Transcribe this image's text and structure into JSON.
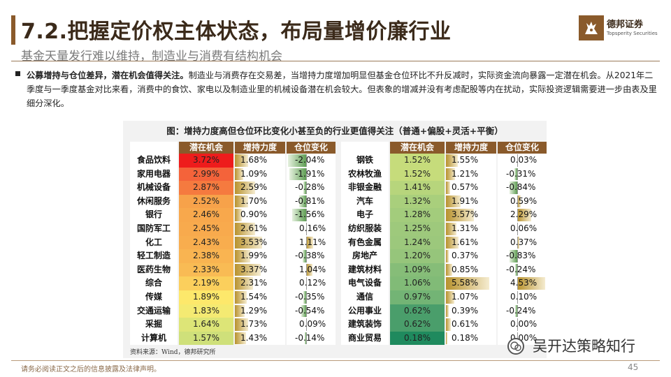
{
  "header": {
    "title": "7.2.把握定价权主体状态，布局量增价廉行业",
    "subtitle": "基金天量发行难以维持，制造业与消费有结构机会",
    "brand_colors": {
      "primary": "#8a5a2b",
      "title_text": "#3b2a1a"
    }
  },
  "logo": {
    "name": "德邦证券",
    "name_en": "Topsperity Securities",
    "icon": "deer-logo-icon"
  },
  "bullet": {
    "lead": "公募增持与仓位差异，潜在机会值得关注。",
    "body": "制造业与消费存在交易差，当增持力度增加明显但基金仓位环比不升反减时，实际资金流向暴露一定潜在机会。从2021年二季度与一季度基金对比来看，消费中的食饮、家电以及制造业里的机械设备潜在机会较大。但表象的增减并没有考虑配股等内在扰动，实际投资逻辑需要进一步由表及里细分深化。"
  },
  "panel": {
    "title": "图：增持力度高但仓位环比变化小甚至负的行业更值得关注（普通+偏股+灵活+平衡）",
    "source": "资料来源：Wind，德邦研究所"
  },
  "chart_data": {
    "type": "table",
    "columns": [
      "潜在机会",
      "增持力度",
      "仓位变化"
    ],
    "left": [
      {
        "industry": "食品饮料",
        "opportunity": "3.72%",
        "increase": "1.68%",
        "position": "-2.04%",
        "opp_color": "#ee1c1c",
        "inc": 1.68,
        "pos": -2.04
      },
      {
        "industry": "家用电器",
        "opportunity": "2.99%",
        "increase": "1.09%",
        "position": "-1.91%",
        "opp_color": "#f4633a",
        "inc": 1.09,
        "pos": -1.91
      },
      {
        "industry": "机械设备",
        "opportunity": "2.87%",
        "increase": "2.59%",
        "position": "-0.28%",
        "opp_color": "#f57a3f",
        "inc": 2.59,
        "pos": -0.28
      },
      {
        "industry": "休闲服务",
        "opportunity": "2.52%",
        "increase": "1.70%",
        "position": "-0.81%",
        "opp_color": "#f7a24a",
        "inc": 1.7,
        "pos": -0.81
      },
      {
        "industry": "银行",
        "opportunity": "2.46%",
        "increase": "0.90%",
        "position": "-1.56%",
        "opp_color": "#f8a84c",
        "inc": 0.9,
        "pos": -1.56
      },
      {
        "industry": "国防军工",
        "opportunity": "2.45%",
        "increase": "2.61%",
        "position": "0.16%",
        "opp_color": "#f8aa4d",
        "inc": 2.61,
        "pos": 0.16
      },
      {
        "industry": "化工",
        "opportunity": "2.43%",
        "increase": "3.53%",
        "position": "1.11%",
        "opp_color": "#f8ad4e",
        "inc": 3.53,
        "pos": 1.11
      },
      {
        "industry": "轻工制造",
        "opportunity": "2.38%",
        "increase": "1.99%",
        "position": "-0.38%",
        "opp_color": "#f9b451",
        "inc": 1.99,
        "pos": -0.38
      },
      {
        "industry": "医药生物",
        "opportunity": "2.33%",
        "increase": "3.37%",
        "position": "1.04%",
        "opp_color": "#f9bb54",
        "inc": 3.37,
        "pos": 1.04
      },
      {
        "industry": "综合",
        "opportunity": "2.19%",
        "increase": "2.31%",
        "position": "0.12%",
        "opp_color": "#fbcf5c",
        "inc": 2.31,
        "pos": 0.12
      },
      {
        "industry": "传媒",
        "opportunity": "1.89%",
        "increase": "1.54%",
        "position": "-0.35%",
        "opp_color": "#fde86b",
        "inc": 1.54,
        "pos": -0.35
      },
      {
        "industry": "交通运输",
        "opportunity": "1.83%",
        "increase": "1.29%",
        "position": "-0.54%",
        "opp_color": "#f4ea72",
        "inc": 1.29,
        "pos": -0.54
      },
      {
        "industry": "采掘",
        "opportunity": "1.64%",
        "increase": "1.73%",
        "position": "0.09%",
        "opp_color": "#dde577",
        "inc": 1.73,
        "pos": 0.09
      },
      {
        "industry": "计算机",
        "opportunity": "1.57%",
        "increase": "1.43%",
        "position": "-0.14%",
        "opp_color": "#cfe07a",
        "inc": 1.43,
        "pos": -0.14
      }
    ],
    "right": [
      {
        "industry": "钢铁",
        "opportunity": "1.52%",
        "increase": "1.55%",
        "position": "0.03%",
        "opp_color": "#c6dc7b",
        "inc": 1.55,
        "pos": 0.03
      },
      {
        "industry": "农林牧渔",
        "opportunity": "1.52%",
        "increase": "1.21%",
        "position": "-0.31%",
        "opp_color": "#c6dc7b",
        "inc": 1.21,
        "pos": -0.31
      },
      {
        "industry": "非银金融",
        "opportunity": "1.41%",
        "increase": "0.57%",
        "position": "-0.84%",
        "opp_color": "#b7d57c",
        "inc": 0.57,
        "pos": -0.84
      },
      {
        "industry": "汽车",
        "opportunity": "1.32%",
        "increase": "1.91%",
        "position": "0.59%",
        "opp_color": "#a9cf7c",
        "inc": 1.91,
        "pos": 0.59
      },
      {
        "industry": "电子",
        "opportunity": "1.28%",
        "increase": "3.57%",
        "position": "2.29%",
        "opp_color": "#a3cc7c",
        "inc": 3.57,
        "pos": 2.29
      },
      {
        "industry": "纺织服装",
        "opportunity": "1.25%",
        "increase": "1.31%",
        "position": "0.06%",
        "opp_color": "#9ec97c",
        "inc": 1.31,
        "pos": 0.06
      },
      {
        "industry": "有色金属",
        "opportunity": "1.24%",
        "increase": "1.61%",
        "position": "0.37%",
        "opp_color": "#9cc87c",
        "inc": 1.61,
        "pos": 0.37
      },
      {
        "industry": "房地产",
        "opportunity": "1.20%",
        "increase": "0.37%",
        "position": "-0.83%",
        "opp_color": "#96c57b",
        "inc": 0.37,
        "pos": -0.83
      },
      {
        "industry": "建筑材料",
        "opportunity": "1.09%",
        "increase": "0.85%",
        "position": "-0.24%",
        "opp_color": "#86bd78",
        "inc": 0.85,
        "pos": -0.24
      },
      {
        "industry": "电气设备",
        "opportunity": "1.06%",
        "increase": "5.58%",
        "position": "4.53%",
        "opp_color": "#81bb77",
        "inc": 5.58,
        "pos": 4.53
      },
      {
        "industry": "通信",
        "opportunity": "0.97%",
        "increase": "1.07%",
        "position": "0.10%",
        "opp_color": "#73b475",
        "inc": 1.07,
        "pos": 0.1
      },
      {
        "industry": "公用事业",
        "opportunity": "0.62%",
        "increase": "0.39%",
        "position": "-0.24%",
        "opp_color": "#4a9e6b",
        "inc": 0.39,
        "pos": -0.24
      },
      {
        "industry": "建筑装饰",
        "opportunity": "0.62%",
        "increase": "0.61%",
        "position": "0.00%",
        "opp_color": "#4a9e6b",
        "inc": 0.61,
        "pos": 0.0
      },
      {
        "industry": "商业贸易",
        "opportunity": "0.18%",
        "increase": "0.18%",
        "position": "0.00%",
        "opp_color": "#1f8a5e",
        "inc": 0.18,
        "pos": 0.0
      }
    ]
  },
  "watermark": {
    "text": "吴开达策略知行",
    "icon": "wechat-icon"
  },
  "footer": {
    "disclaimer": "请务必阅读正文之后的信息披露及法律声明。",
    "page_number": "45"
  }
}
